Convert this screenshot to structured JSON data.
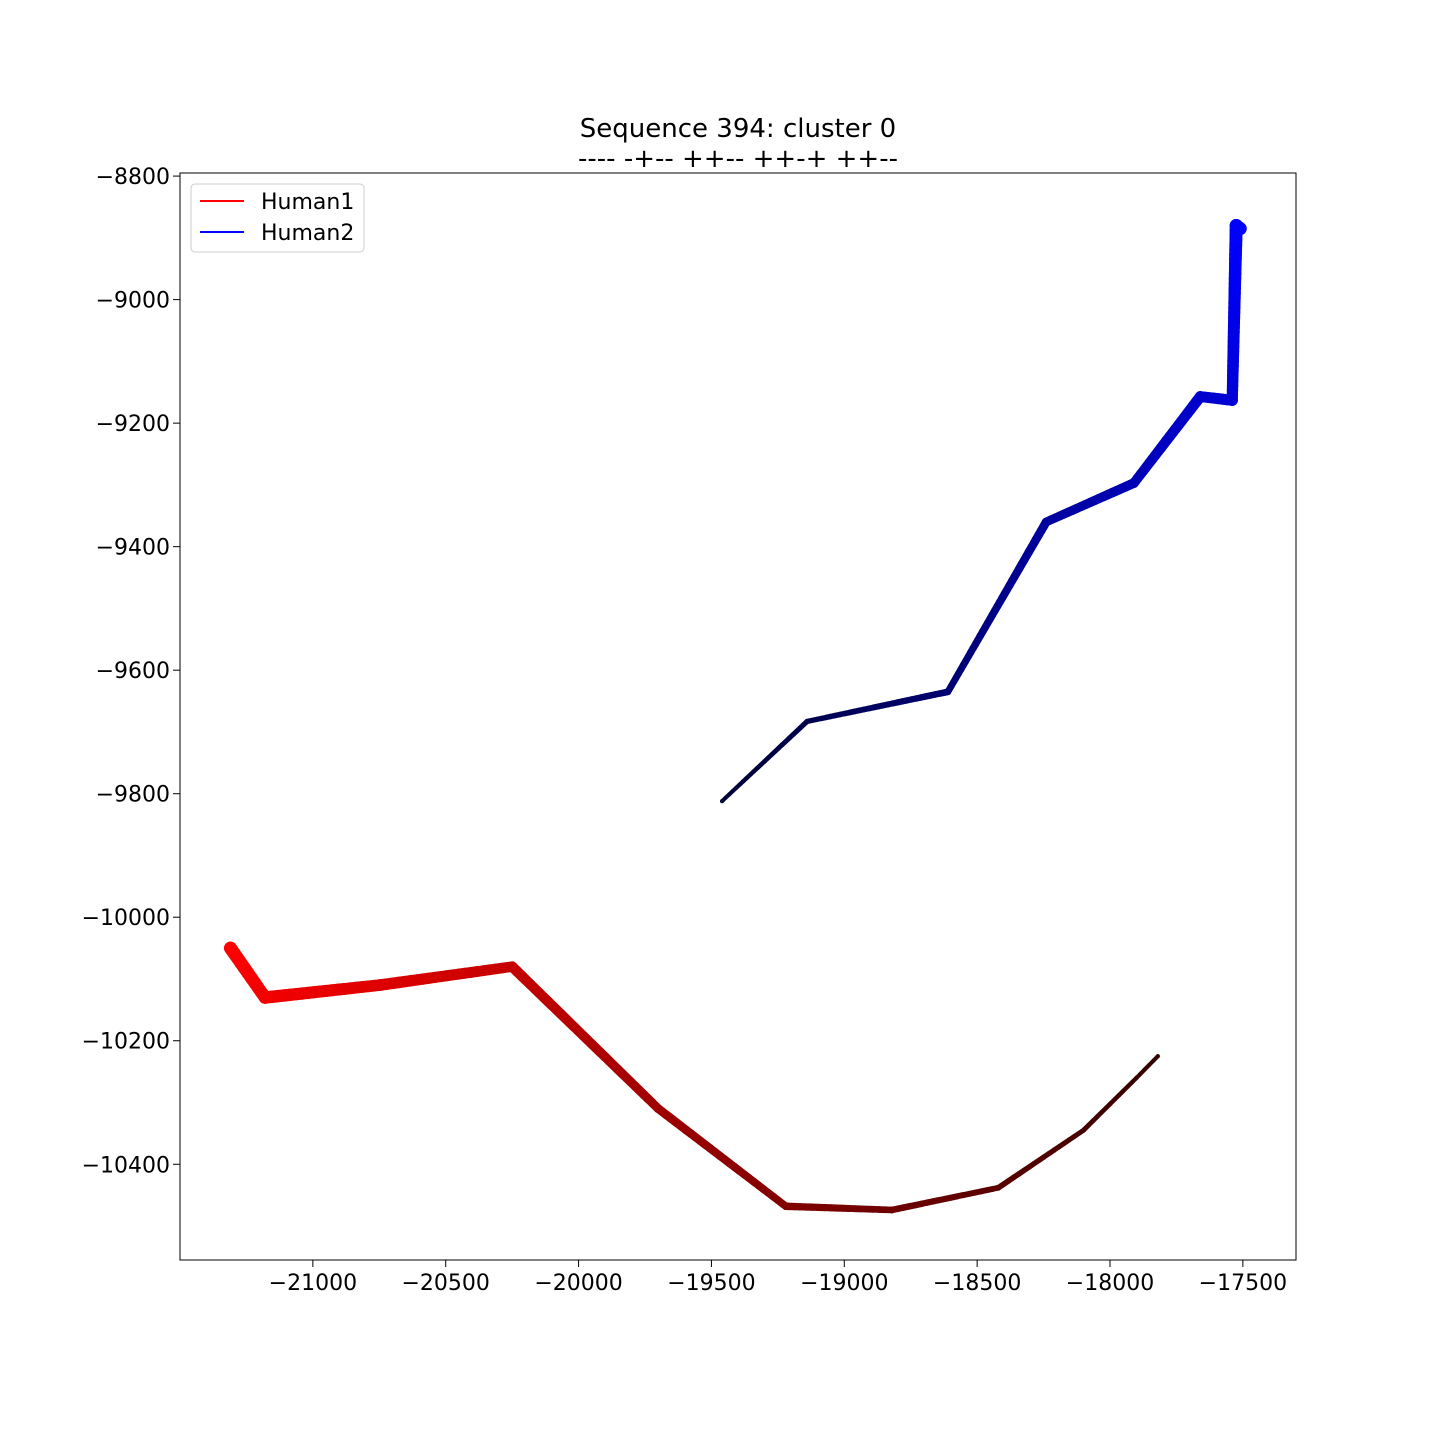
{
  "chart_data": {
    "type": "line",
    "title": "Sequence 394: cluster 0",
    "subtitle": "---- -+-- ++-- ++-+ ++--",
    "xlabel": "",
    "ylabel": "",
    "xlim": [
      -21500,
      -17300
    ],
    "ylim": [
      -10555,
      -8795
    ],
    "xticks": [
      -21000,
      -20500,
      -20000,
      -19500,
      -19000,
      -18500,
      -18000,
      -17500
    ],
    "xtick_labels": [
      "−21000",
      "−20500",
      "−20000",
      "−19500",
      "−19000",
      "−18500",
      "−18000",
      "−17500"
    ],
    "yticks": [
      -8800,
      -9000,
      -9200,
      -9400,
      -9600,
      -9800,
      -10000,
      -10200,
      -10400
    ],
    "ytick_labels": [
      "−8800",
      "−9000",
      "−9200",
      "−9400",
      "−9600",
      "−9800",
      "−10000",
      "−10200",
      "−10400"
    ],
    "grid": false,
    "legend_position": "top-left",
    "series": [
      {
        "name": "Human1",
        "legend_color": "#ff0000",
        "color_start": "#ff0000",
        "color_end": "#330000",
        "width_start": 13,
        "width_end": 4,
        "points": [
          [
            -21310,
            -10050
          ],
          [
            -21180,
            -10130
          ],
          [
            -20750,
            -10110
          ],
          [
            -20250,
            -10080
          ],
          [
            -19700,
            -10310
          ],
          [
            -19220,
            -10468
          ],
          [
            -18820,
            -10474
          ],
          [
            -18420,
            -10438
          ],
          [
            -18100,
            -10345
          ],
          [
            -17900,
            -10260
          ],
          [
            -17820,
            -10225
          ]
        ]
      },
      {
        "name": "Human2",
        "legend_color": "#0000ff",
        "color_start": "#000033",
        "color_end": "#0000ff",
        "width_start": 4,
        "width_end": 13,
        "points": [
          [
            -19460,
            -9812
          ],
          [
            -19140,
            -9683
          ],
          [
            -18610,
            -9635
          ],
          [
            -18240,
            -9360
          ],
          [
            -17910,
            -9297
          ],
          [
            -17660,
            -9157
          ],
          [
            -17540,
            -9163
          ],
          [
            -17525,
            -8880
          ],
          [
            -17510,
            -8885
          ]
        ]
      }
    ]
  }
}
